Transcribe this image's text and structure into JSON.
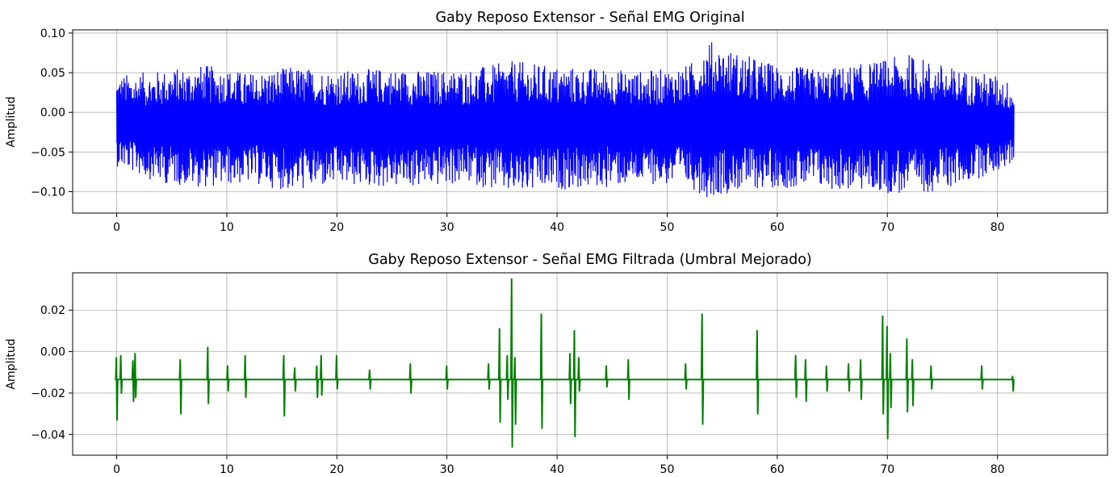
{
  "chart_data": [
    {
      "type": "line",
      "title": "Gaby Reposo Extensor - Señal EMG Original",
      "xlabel": "",
      "ylabel": "Amplitud",
      "xlim": [
        -4,
        90
      ],
      "ylim": [
        -0.127,
        0.104
      ],
      "xticks": [
        0,
        10,
        20,
        30,
        40,
        50,
        60,
        70,
        80
      ],
      "yticks": [
        0.1,
        0.05,
        0.0,
        -0.05,
        -0.1
      ],
      "ytick_labels": [
        "0.10",
        "0.05",
        "0.00",
        "−0.05",
        "−0.10"
      ],
      "grid": true,
      "color": "#0000ff",
      "series": [
        {
          "x": [
            0,
            4,
            8,
            12,
            16,
            20,
            24,
            28,
            32,
            36,
            40,
            44,
            48,
            52,
            53.7,
            56,
            60,
            64,
            68,
            72,
            76,
            80,
            81.5
          ],
          "upper": [
            0.047,
            0.053,
            0.06,
            0.05,
            0.058,
            0.052,
            0.056,
            0.053,
            0.055,
            0.065,
            0.058,
            0.056,
            0.052,
            0.06,
            0.092,
            0.078,
            0.06,
            0.055,
            0.062,
            0.074,
            0.056,
            0.047,
            0.035
          ],
          "lower": [
            -0.068,
            -0.09,
            -0.095,
            -0.09,
            -0.1,
            -0.093,
            -0.095,
            -0.095,
            -0.09,
            -0.105,
            -0.098,
            -0.096,
            -0.09,
            -0.095,
            -0.108,
            -0.1,
            -0.095,
            -0.098,
            -0.1,
            -0.105,
            -0.095,
            -0.075,
            -0.065
          ]
        }
      ]
    },
    {
      "type": "line",
      "title": "Gaby Reposo Extensor - Señal EMG Filtrada (Umbral Mejorado)",
      "xlabel": "",
      "ylabel": "Amplitud",
      "xlim": [
        -4,
        90
      ],
      "ylim": [
        -0.05,
        0.038
      ],
      "xticks": [
        0,
        10,
        20,
        30,
        40,
        50,
        60,
        70,
        80
      ],
      "yticks": [
        0.02,
        0.0,
        -0.02,
        -0.04
      ],
      "ytick_labels": [
        "0.02",
        "0.00",
        "−0.02",
        "−0.04"
      ],
      "grid": true,
      "color": "#008000",
      "series": [
        {
          "baseline": -0.0135,
          "spikes": [
            {
              "x": 0.0,
              "max": -0.003,
              "min": -0.033
            },
            {
              "x": 0.4,
              "max": -0.002,
              "min": -0.02
            },
            {
              "x": 1.5,
              "max": -0.0045,
              "min": -0.024
            },
            {
              "x": 1.7,
              "max": -0.001,
              "min": -0.022
            },
            {
              "x": 5.8,
              "max": -0.004,
              "min": -0.03
            },
            {
              "x": 8.3,
              "max": 0.002,
              "min": -0.025
            },
            {
              "x": 10.1,
              "max": -0.007,
              "min": -0.019
            },
            {
              "x": 11.7,
              "max": -0.002,
              "min": -0.022
            },
            {
              "x": 15.2,
              "max": -0.002,
              "min": -0.031
            },
            {
              "x": 16.2,
              "max": -0.008,
              "min": -0.019
            },
            {
              "x": 18.2,
              "max": -0.007,
              "min": -0.022
            },
            {
              "x": 18.6,
              "max": -0.002,
              "min": -0.021
            },
            {
              "x": 20.0,
              "max": -0.002,
              "min": -0.018
            },
            {
              "x": 23.0,
              "max": -0.009,
              "min": -0.018
            },
            {
              "x": 26.7,
              "max": -0.006,
              "min": -0.02
            },
            {
              "x": 30.0,
              "max": -0.007,
              "min": -0.018
            },
            {
              "x": 33.8,
              "max": -0.006,
              "min": -0.018
            },
            {
              "x": 34.8,
              "max": 0.011,
              "min": -0.034
            },
            {
              "x": 35.5,
              "max": -0.002,
              "min": -0.023
            },
            {
              "x": 35.9,
              "max": 0.035,
              "min": -0.046
            },
            {
              "x": 36.2,
              "max": -0.003,
              "min": -0.035
            },
            {
              "x": 38.6,
              "max": 0.018,
              "min": -0.037
            },
            {
              "x": 41.2,
              "max": -0.001,
              "min": -0.025
            },
            {
              "x": 41.6,
              "max": 0.01,
              "min": -0.041
            },
            {
              "x": 42.0,
              "max": -0.003,
              "min": -0.019
            },
            {
              "x": 44.5,
              "max": -0.007,
              "min": -0.017
            },
            {
              "x": 46.5,
              "max": -0.004,
              "min": -0.023
            },
            {
              "x": 51.7,
              "max": -0.006,
              "min": -0.018
            },
            {
              "x": 53.2,
              "max": 0.018,
              "min": -0.035
            },
            {
              "x": 58.2,
              "max": 0.01,
              "min": -0.03
            },
            {
              "x": 61.7,
              "max": -0.002,
              "min": -0.022
            },
            {
              "x": 62.6,
              "max": -0.004,
              "min": -0.024
            },
            {
              "x": 64.5,
              "max": -0.007,
              "min": -0.019
            },
            {
              "x": 66.5,
              "max": -0.006,
              "min": -0.019
            },
            {
              "x": 67.6,
              "max": -0.004,
              "min": -0.023
            },
            {
              "x": 69.6,
              "max": 0.017,
              "min": -0.03
            },
            {
              "x": 70.0,
              "max": 0.012,
              "min": -0.042
            },
            {
              "x": 70.3,
              "max": -0.001,
              "min": -0.027
            },
            {
              "x": 71.8,
              "max": 0.006,
              "min": -0.029
            },
            {
              "x": 72.3,
              "max": -0.004,
              "min": -0.026
            },
            {
              "x": 74.0,
              "max": -0.007,
              "min": -0.018
            },
            {
              "x": 78.6,
              "max": -0.007,
              "min": -0.018
            },
            {
              "x": 81.4,
              "max": -0.012,
              "min": -0.019
            }
          ]
        }
      ]
    }
  ]
}
